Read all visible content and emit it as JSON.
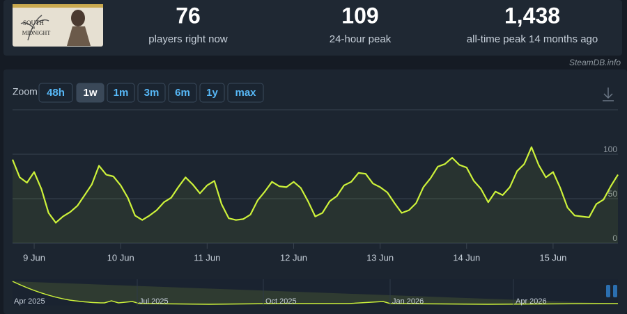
{
  "stats": [
    {
      "value": "76",
      "label": "players right now"
    },
    {
      "value": "109",
      "label": "24-hour peak"
    },
    {
      "value": "1,438",
      "label": "all-time peak 14 months ago"
    }
  ],
  "game": {
    "logo_top": "SOUTH",
    "logo_mid": "of",
    "logo_bottom": "MIDNIGHT"
  },
  "source": "SteamDB.info",
  "zoom": {
    "label": "Zoom",
    "buttons": [
      "48h",
      "1w",
      "1m",
      "3m",
      "6m",
      "1y",
      "max"
    ],
    "active": "1w"
  },
  "chart_data": {
    "type": "line",
    "color": "#cdf23a",
    "grid": true,
    "ylim": [
      0,
      150
    ],
    "yticks": [
      0,
      50,
      100
    ],
    "categories": [
      null,
      null,
      null,
      "9 Jun",
      null,
      null,
      null,
      null,
      null,
      null,
      null,
      null,
      null,
      null,
      null,
      "10 Jun",
      null,
      null,
      null,
      null,
      null,
      null,
      null,
      null,
      null,
      null,
      null,
      "11 Jun",
      null,
      null,
      null,
      null,
      null,
      null,
      null,
      null,
      null,
      null,
      null,
      "12 Jun",
      null,
      null,
      null,
      null,
      null,
      null,
      null,
      null,
      null,
      null,
      null,
      "13 Jun",
      null,
      null,
      null,
      null,
      null,
      null,
      null,
      null,
      null,
      null,
      null,
      "14 Jun",
      null,
      null,
      null,
      null,
      null,
      null,
      null,
      null,
      null,
      null,
      null,
      "15 Jun",
      null,
      null,
      null,
      null,
      null,
      null,
      null,
      null,
      null
    ],
    "values": [
      94,
      74,
      68,
      80,
      61,
      34,
      23,
      30,
      35,
      42,
      54,
      66,
      87,
      77,
      75,
      65,
      51,
      31,
      26,
      31,
      37,
      46,
      51,
      63,
      74,
      66,
      56,
      65,
      70,
      44,
      28,
      26,
      27,
      32,
      48,
      58,
      69,
      64,
      63,
      69,
      62,
      47,
      30,
      34,
      47,
      53,
      65,
      69,
      79,
      78,
      67,
      63,
      57,
      45,
      34,
      37,
      45,
      63,
      73,
      86,
      89,
      96,
      88,
      85,
      70,
      61,
      46,
      58,
      54,
      63,
      81,
      89,
      108,
      88,
      74,
      80,
      62,
      40,
      31,
      30,
      29,
      44,
      49,
      64,
      77
    ],
    "navigator_labels": [
      "Apr 2025",
      "Jul 2025",
      "Oct 2025",
      "Jan 2026",
      "Apr 2026"
    ]
  }
}
